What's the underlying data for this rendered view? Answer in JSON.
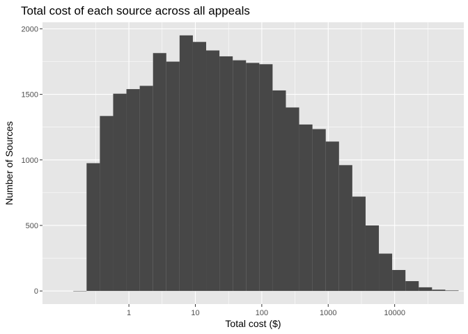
{
  "chart_data": {
    "type": "bar",
    "title": "Total cost of each source across all appeals",
    "xlabel": "Total cost ($)",
    "ylabel": "Number of Sources",
    "x_scale": "log10",
    "xlim": [
      0.05,
      110000
    ],
    "ylim": [
      -100,
      2050
    ],
    "grid": true,
    "legend": "none",
    "x_ticks": [
      {
        "value": 1,
        "label": "1"
      },
      {
        "value": 10,
        "label": "10"
      },
      {
        "value": 100,
        "label": "100"
      },
      {
        "value": 1000,
        "label": "1000"
      },
      {
        "value": 10000,
        "label": "10000"
      }
    ],
    "y_ticks": [
      {
        "value": 0,
        "label": "0"
      },
      {
        "value": 500,
        "label": "500"
      },
      {
        "value": 1000,
        "label": "1000"
      },
      {
        "value": 1500,
        "label": "1500"
      },
      {
        "value": 2000,
        "label": "2000"
      }
    ],
    "bins": [
      {
        "x0": 0.1455,
        "x1": 0.2306,
        "count": 0
      },
      {
        "x0": 0.2306,
        "x1": 0.3654,
        "count": 975
      },
      {
        "x0": 0.3654,
        "x1": 0.5791,
        "count": 1335
      },
      {
        "x0": 0.5791,
        "x1": 0.9179,
        "count": 1505
      },
      {
        "x0": 0.9179,
        "x1": 1.4547,
        "count": 1540
      },
      {
        "x0": 1.4547,
        "x1": 2.3055,
        "count": 1565
      },
      {
        "x0": 2.3055,
        "x1": 3.6542,
        "count": 1815
      },
      {
        "x0": 3.6542,
        "x1": 5.7914,
        "count": 1750
      },
      {
        "x0": 5.7914,
        "x1": 9.1788,
        "count": 1950
      },
      {
        "x0": 9.1788,
        "x1": 14.5474,
        "count": 1900
      },
      {
        "x0": 14.5474,
        "x1": 23.0558,
        "count": 1835
      },
      {
        "x0": 23.0558,
        "x1": 36.5409,
        "count": 1790
      },
      {
        "x0": 36.5409,
        "x1": 57.9135,
        "count": 1760
      },
      {
        "x0": 57.9135,
        "x1": 91.7869,
        "count": 1740
      },
      {
        "x0": 91.7869,
        "x1": 145.4752,
        "count": 1730
      },
      {
        "x0": 145.4752,
        "x1": 230.5584,
        "count": 1530
      },
      {
        "x0": 230.5584,
        "x1": 365.4097,
        "count": 1400
      },
      {
        "x0": 365.4097,
        "x1": 579.1393,
        "count": 1270
      },
      {
        "x0": 579.1393,
        "x1": 917.8703,
        "count": 1235
      },
      {
        "x0": 917.8703,
        "x1": 1454.7534,
        "count": 1140
      },
      {
        "x0": 1454.7534,
        "x1": 2305.5854,
        "count": 960
      },
      {
        "x0": 2305.5854,
        "x1": 3654.0966,
        "count": 720
      },
      {
        "x0": 3654.0966,
        "x1": 5791.3912,
        "count": 500
      },
      {
        "x0": 5791.3912,
        "x1": 9178.7037,
        "count": 285
      },
      {
        "x0": 9178.7037,
        "x1": 14547.5,
        "count": 160
      },
      {
        "x0": 14547.5,
        "x1": 23055.8,
        "count": 75
      },
      {
        "x0": 23055.8,
        "x1": 36541.0,
        "count": 28
      },
      {
        "x0": 36541.0,
        "x1": 57914.0,
        "count": 10
      },
      {
        "x0": 57914.0,
        "x1": 91788.0,
        "count": 4
      }
    ],
    "colors": {
      "bar": "#474747",
      "panel_background": "#e6e6e6",
      "grid_major": "#ffffff",
      "tick": "#333333",
      "tick_text": "#4d4d4d",
      "text": "#000000"
    }
  }
}
